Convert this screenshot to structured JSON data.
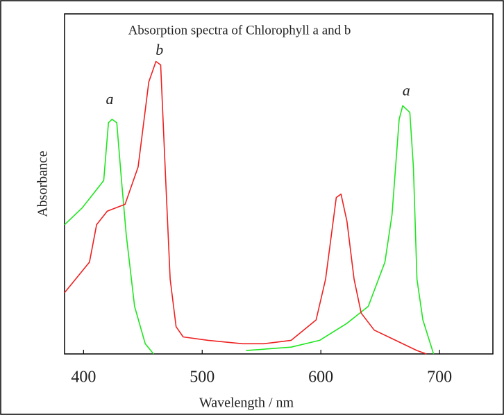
{
  "chart_data": {
    "type": "line",
    "title": "Absorption spectra of Chlorophyll a and b",
    "xlabel": "Wavelength / nm",
    "ylabel": "Absorbance",
    "xlim": [
      384,
      745
    ],
    "ylim": [
      0,
      1
    ],
    "xticks": [
      400,
      500,
      600,
      700
    ],
    "grid": false,
    "series": [
      {
        "name": "a",
        "color": "#1ee61e",
        "x": [
          384,
          399,
          417,
          421,
          424,
          428,
          432,
          436,
          443,
          452,
          459,
          500,
          537,
          575,
          599,
          622,
          640,
          654,
          660,
          666,
          669,
          675,
          678,
          681,
          686,
          695
        ],
        "values": [
          0.38,
          0.43,
          0.51,
          0.68,
          0.69,
          0.68,
          0.51,
          0.35,
          0.14,
          0.03,
          0,
          null,
          0.01,
          0.02,
          0.04,
          0.09,
          0.14,
          0.27,
          0.41,
          0.69,
          0.73,
          0.71,
          0.55,
          0.22,
          0.1,
          0
        ]
      },
      {
        "name": "b",
        "color": "#ee2020",
        "x": [
          384,
          405,
          411,
          420,
          435,
          446,
          455,
          461,
          465,
          469,
          473,
          478,
          484,
          505,
          534,
          552,
          575,
          596,
          604,
          613,
          617,
          622,
          628,
          634,
          645,
          663,
          681,
          689
        ],
        "values": [
          0.18,
          0.27,
          0.38,
          0.42,
          0.44,
          0.55,
          0.8,
          0.86,
          0.85,
          0.53,
          0.22,
          0.08,
          0.05,
          0.04,
          0.03,
          0.03,
          0.04,
          0.1,
          0.22,
          0.46,
          0.47,
          0.39,
          0.22,
          0.12,
          0.07,
          0.04,
          0.01,
          0
        ]
      }
    ],
    "annotations": [
      {
        "text": "a",
        "x": 422,
        "y": 0.745
      },
      {
        "text": "b",
        "x": 464,
        "y": 0.89
      },
      {
        "text": "a",
        "x": 672,
        "y": 0.77
      }
    ]
  }
}
